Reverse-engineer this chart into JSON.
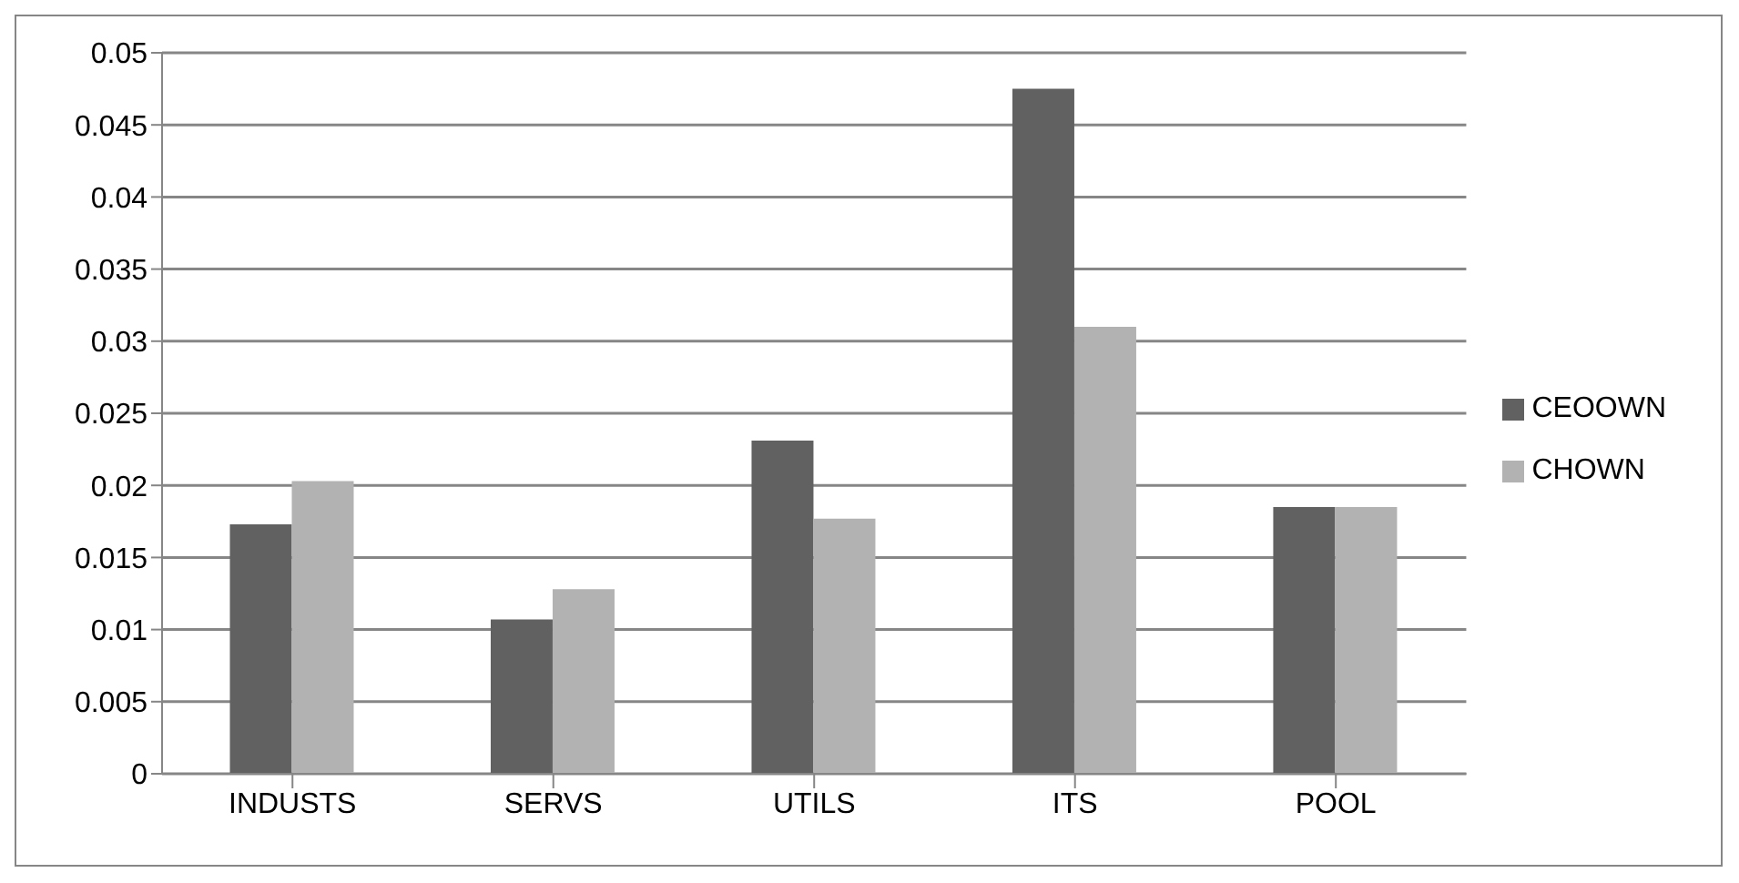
{
  "chart_data": {
    "type": "bar",
    "categories": [
      "INDUSTS",
      "SERVS",
      "UTILS",
      "ITS",
      "POOL"
    ],
    "series": [
      {
        "name": "CEOOWN",
        "color": "#616161",
        "values": [
          0.0173,
          0.0107,
          0.0231,
          0.0475,
          0.0185
        ]
      },
      {
        "name": "CHOWN",
        "color": "#b2b2b2",
        "values": [
          0.0203,
          0.0128,
          0.0177,
          0.031,
          0.0185
        ]
      }
    ],
    "ylim": [
      0,
      0.05
    ],
    "yticks": [
      0,
      0.005,
      0.01,
      0.015,
      0.02,
      0.025,
      0.03,
      0.035,
      0.04,
      0.045,
      0.05
    ],
    "grid": "y",
    "legend": "right"
  }
}
